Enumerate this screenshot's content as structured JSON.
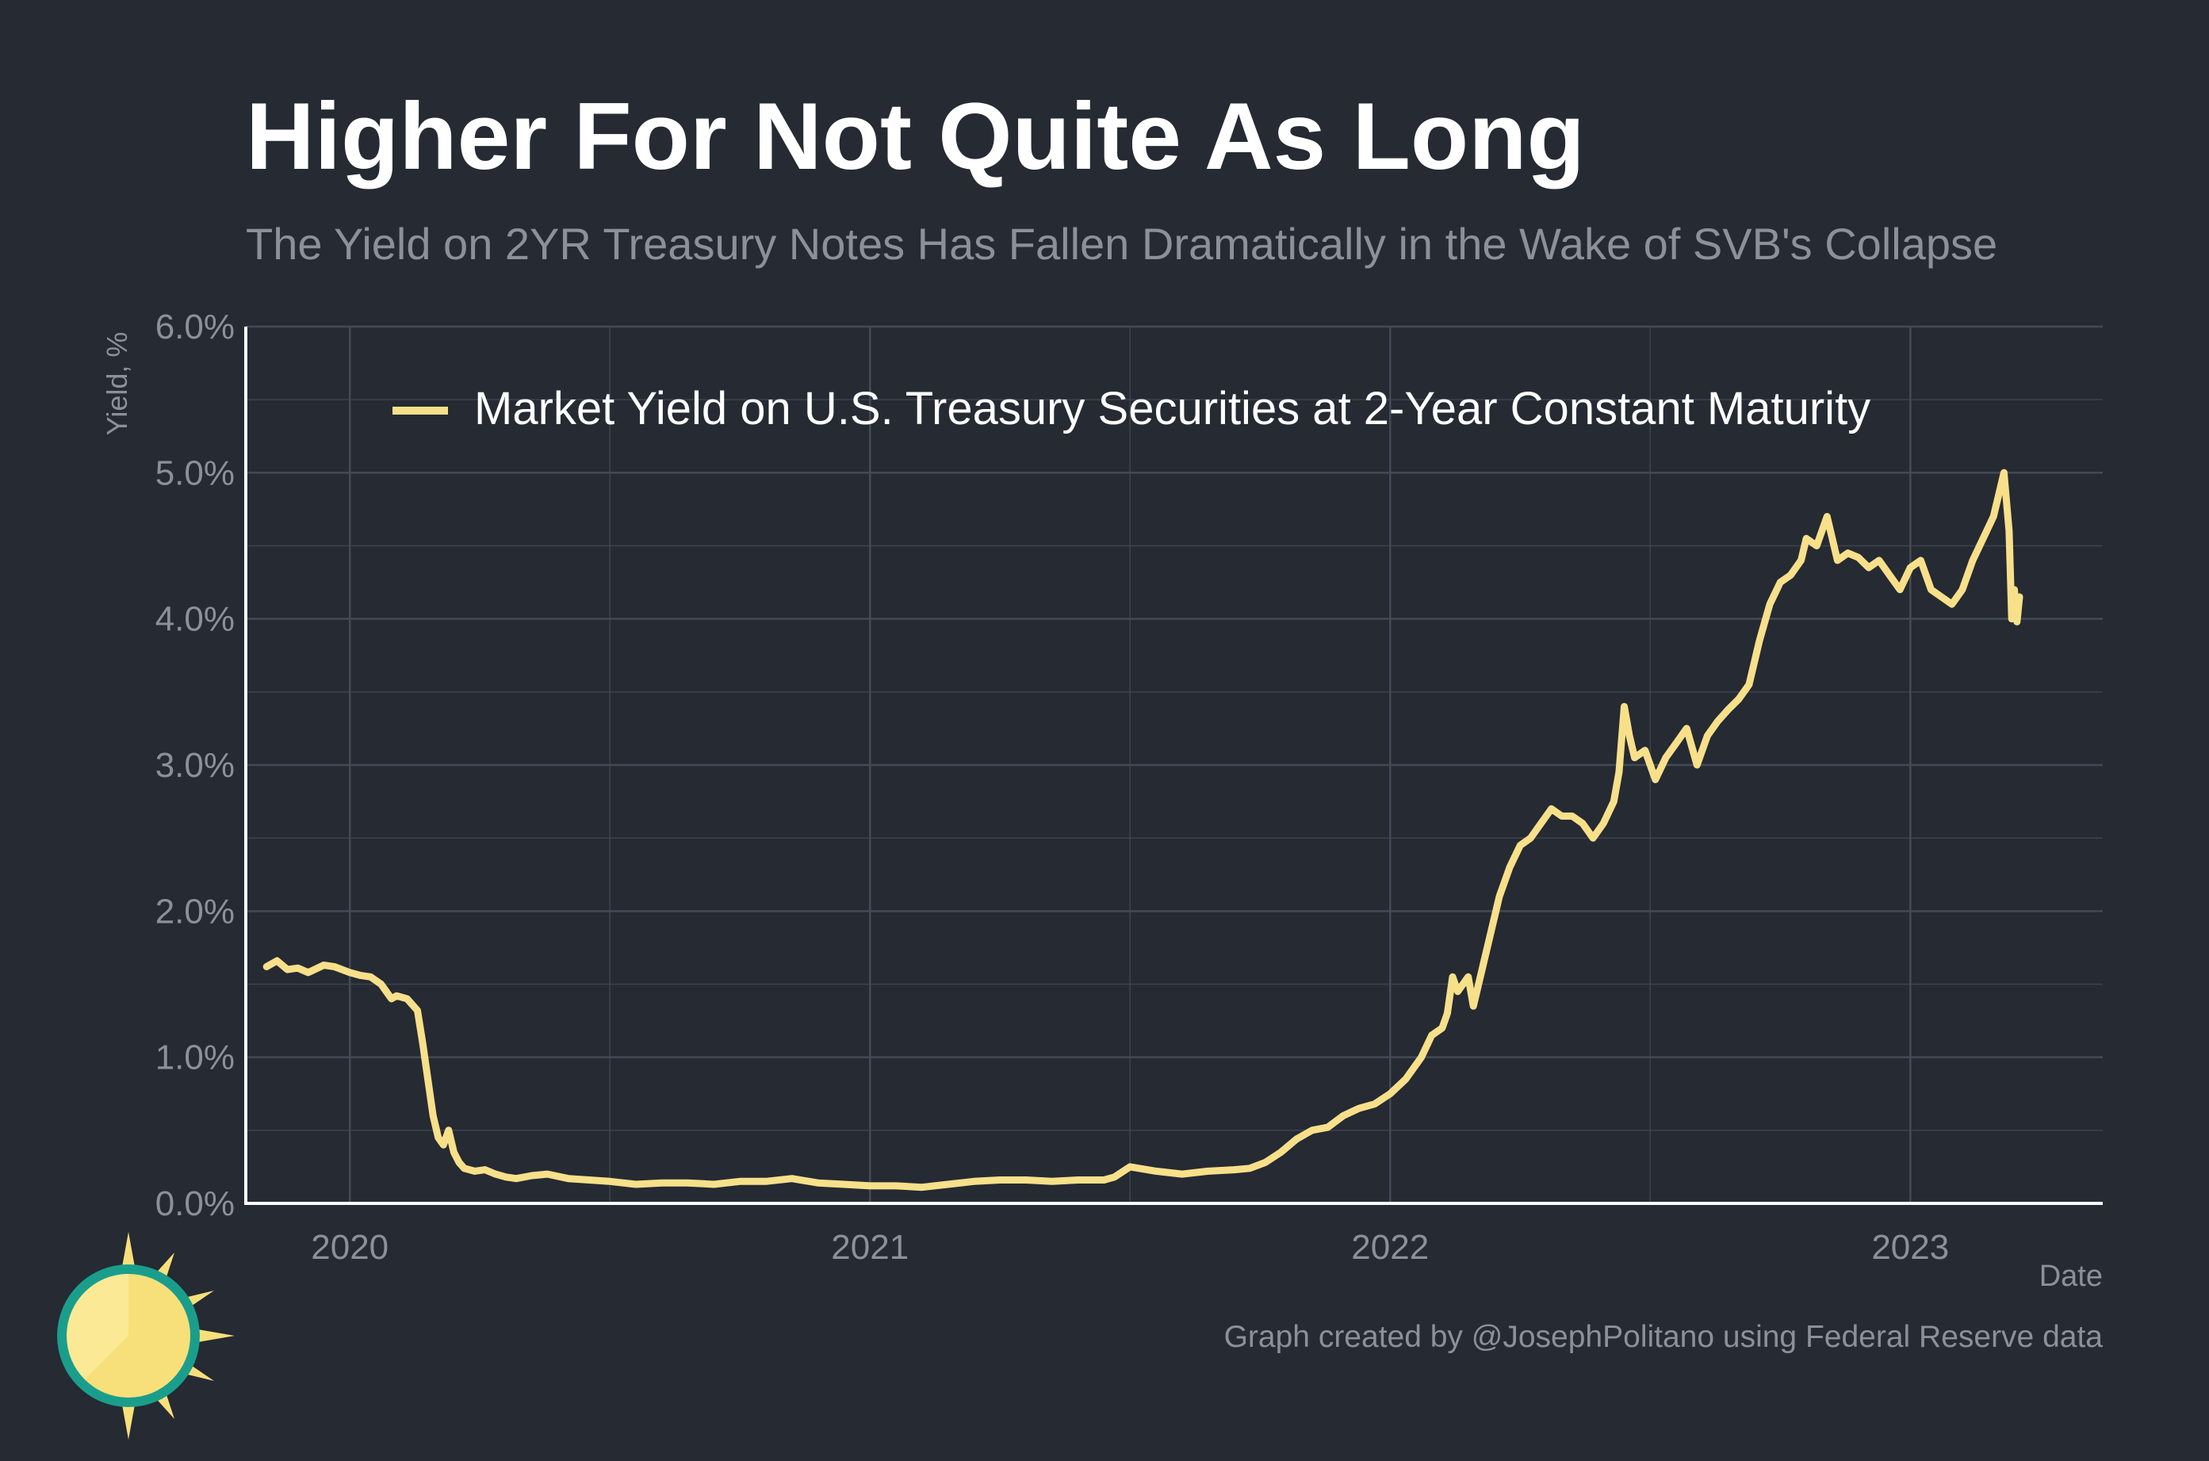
{
  "title": "Higher For Not Quite As Long",
  "subtitle": "The Yield on 2YR Treasury Notes Has Fallen Dramatically in the Wake of SVB's Collapse",
  "caption": "Graph created by @JosephPolitano using Federal Reserve data",
  "colors": {
    "background": "#252a33",
    "line": "#f8e08a",
    "grid": "#454b56",
    "axis": "#ffffff",
    "muted_text": "#8b9099",
    "logo_teal": "#1a9e8c",
    "logo_yellow": "#f7e07a"
  },
  "logo_icon": "sun-logo-icon",
  "chart_data": {
    "type": "line",
    "title": "Higher For Not Quite As Long",
    "xlabel": "Date",
    "ylabel": "Yield, %",
    "ylim": [
      0,
      6
    ],
    "y_ticks": [
      0,
      1,
      2,
      3,
      4,
      5,
      6
    ],
    "y_tick_labels": [
      "0.0%",
      "1.0%",
      "2.0%",
      "3.0%",
      "4.0%",
      "5.0%",
      "6.0%"
    ],
    "x_ticks": [
      2020,
      2021,
      2022,
      2023
    ],
    "x_tick_labels": [
      "2020",
      "2021",
      "2022",
      "2023"
    ],
    "xlim": [
      2019.8,
      2023.37
    ],
    "grid": true,
    "legend_position": "top",
    "series": [
      {
        "name": "Market Yield on U.S. Treasury Securities at 2-Year Constant Maturity",
        "color": "#f8e08a",
        "x": [
          2019.84,
          2019.86,
          2019.88,
          2019.9,
          2019.92,
          2019.95,
          2019.97,
          2020.0,
          2020.02,
          2020.04,
          2020.06,
          2020.08,
          2020.09,
          2020.11,
          2020.13,
          2020.14,
          2020.15,
          2020.16,
          2020.17,
          2020.18,
          2020.19,
          2020.2,
          2020.21,
          2020.22,
          2020.24,
          2020.26,
          2020.28,
          2020.3,
          2020.32,
          2020.35,
          2020.38,
          2020.42,
          2020.46,
          2020.5,
          2020.55,
          2020.6,
          2020.65,
          2020.7,
          2020.75,
          2020.8,
          2020.85,
          2020.9,
          2020.95,
          2021.0,
          2021.05,
          2021.1,
          2021.15,
          2021.2,
          2021.25,
          2021.3,
          2021.35,
          2021.4,
          2021.45,
          2021.47,
          2021.5,
          2021.55,
          2021.6,
          2021.65,
          2021.7,
          2021.73,
          2021.76,
          2021.79,
          2021.82,
          2021.85,
          2021.88,
          2021.91,
          2021.94,
          2021.97,
          2022.0,
          2022.03,
          2022.06,
          2022.08,
          2022.1,
          2022.11,
          2022.12,
          2022.13,
          2022.15,
          2022.16,
          2022.17,
          2022.19,
          2022.21,
          2022.23,
          2022.25,
          2022.27,
          2022.29,
          2022.31,
          2022.33,
          2022.35,
          2022.37,
          2022.39,
          2022.41,
          2022.43,
          2022.44,
          2022.45,
          2022.46,
          2022.47,
          2022.49,
          2022.51,
          2022.53,
          2022.55,
          2022.57,
          2022.59,
          2022.61,
          2022.63,
          2022.65,
          2022.67,
          2022.69,
          2022.71,
          2022.73,
          2022.75,
          2022.77,
          2022.79,
          2022.8,
          2022.82,
          2022.84,
          2022.86,
          2022.88,
          2022.9,
          2022.92,
          2022.94,
          2022.96,
          2022.98,
          2023.0,
          2023.02,
          2023.04,
          2023.06,
          2023.08,
          2023.1,
          2023.12,
          2023.14,
          2023.16,
          2023.17,
          2023.18,
          2023.19,
          2023.195,
          2023.2,
          2023.205,
          2023.21
        ],
        "values": [
          1.62,
          1.66,
          1.6,
          1.61,
          1.58,
          1.63,
          1.62,
          1.58,
          1.56,
          1.55,
          1.5,
          1.4,
          1.42,
          1.4,
          1.32,
          1.1,
          0.85,
          0.6,
          0.45,
          0.4,
          0.5,
          0.35,
          0.28,
          0.24,
          0.22,
          0.23,
          0.2,
          0.18,
          0.17,
          0.19,
          0.2,
          0.17,
          0.16,
          0.15,
          0.13,
          0.14,
          0.14,
          0.13,
          0.15,
          0.15,
          0.17,
          0.14,
          0.13,
          0.12,
          0.12,
          0.11,
          0.13,
          0.15,
          0.16,
          0.16,
          0.15,
          0.16,
          0.16,
          0.18,
          0.25,
          0.22,
          0.2,
          0.22,
          0.23,
          0.24,
          0.28,
          0.35,
          0.44,
          0.5,
          0.52,
          0.6,
          0.65,
          0.68,
          0.75,
          0.85,
          1.0,
          1.15,
          1.2,
          1.3,
          1.55,
          1.45,
          1.55,
          1.35,
          1.5,
          1.8,
          2.1,
          2.3,
          2.45,
          2.5,
          2.6,
          2.7,
          2.65,
          2.65,
          2.6,
          2.5,
          2.6,
          2.75,
          2.95,
          3.4,
          3.2,
          3.05,
          3.1,
          2.9,
          3.05,
          3.15,
          3.25,
          3.0,
          3.2,
          3.3,
          3.38,
          3.45,
          3.55,
          3.85,
          4.1,
          4.25,
          4.3,
          4.4,
          4.55,
          4.5,
          4.7,
          4.4,
          4.45,
          4.42,
          4.35,
          4.4,
          4.3,
          4.2,
          4.35,
          4.4,
          4.2,
          4.15,
          4.1,
          4.2,
          4.4,
          4.55,
          4.7,
          4.85,
          5.0,
          4.6,
          4.0,
          4.2,
          3.98,
          4.15
        ]
      }
    ]
  }
}
